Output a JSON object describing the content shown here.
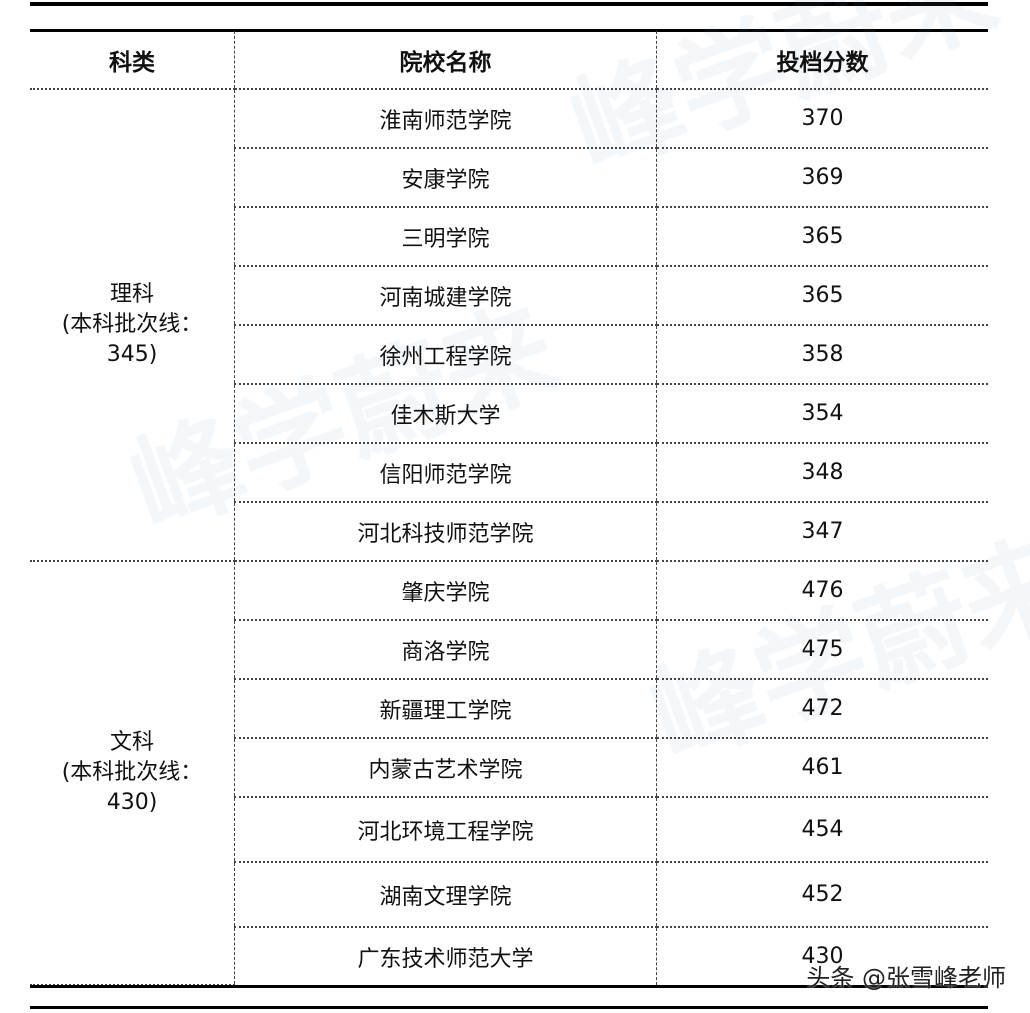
{
  "headers": [
    "科类",
    "院校名称",
    "投档分数"
  ],
  "watermark": "峰学蔚来",
  "groups": [
    {
      "category": "理科",
      "line_label": "(本科批次线：",
      "line_value": "345)",
      "rows": [
        [
          "淮南师范学院",
          "370"
        ],
        [
          "安康学院",
          "369"
        ],
        [
          "三明学院",
          "365"
        ],
        [
          "河南城建学院",
          "365"
        ],
        [
          "徐州工程学院",
          "358"
        ],
        [
          "佳木斯大学",
          "354"
        ],
        [
          "信阳师范学院",
          "348"
        ],
        [
          "河北科技师范学院",
          "347"
        ]
      ]
    },
    {
      "category": "文科",
      "line_label": "(本科批次线：",
      "line_value": "430)",
      "rows": [
        [
          "肇庆学院",
          "476"
        ],
        [
          "商洛学院",
          "475"
        ],
        [
          "新疆理工学院",
          "472"
        ],
        [
          "内蒙古艺术学院",
          "461"
        ],
        [
          "河北环境工程学院",
          "454"
        ],
        [
          "湖南文理学院",
          "452"
        ],
        [
          "广东技术师范大学",
          "430"
        ]
      ]
    }
  ],
  "credit": "头条 @张雪峰老师"
}
